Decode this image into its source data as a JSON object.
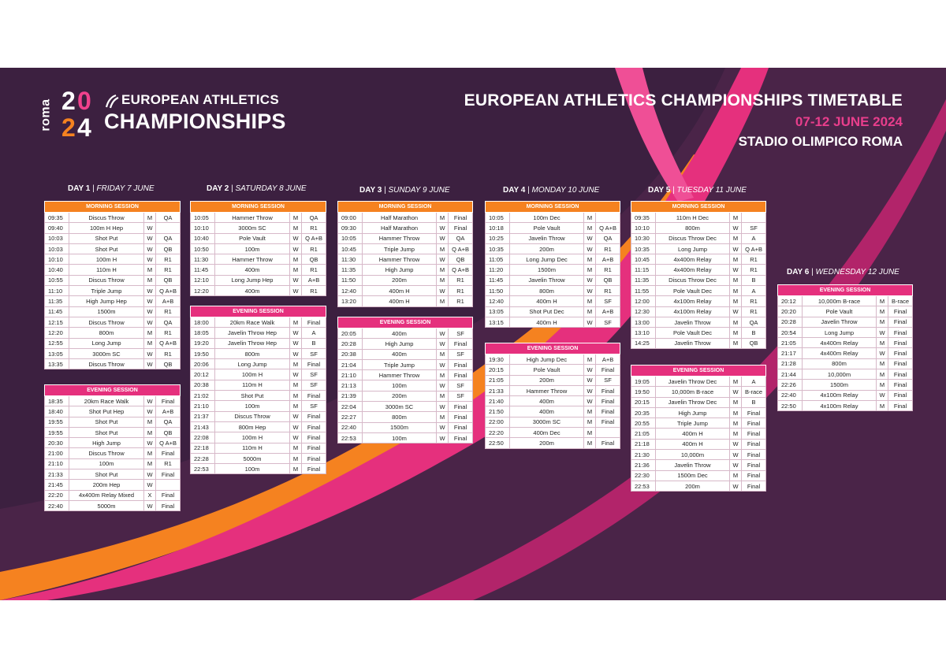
{
  "header": {
    "logo_roma": "roma",
    "logo_year": [
      "2",
      "0",
      "2",
      "4"
    ],
    "logo_line1": "EUROPEAN ATHLETICS",
    "logo_line2": "CHAMPIONSHIPS",
    "title": "EUROPEAN ATHLETICS CHAMPIONSHIPS TIMETABLE",
    "dates": "07-12 JUNE 2024",
    "venue": "STADIO OLIMPICO ROMA"
  },
  "colors": {
    "background": "#3c2040",
    "morning": "#f58220",
    "evening": "#e5307d",
    "pink": "#e83e8c"
  },
  "days": [
    {
      "day": "DAY 1",
      "sep": " | ",
      "date": "FRIDAY 7 JUNE",
      "sessions": [
        {
          "name": "MORNING SESSION",
          "type": "morning",
          "rows": [
            [
              "09:35",
              "Discus Throw",
              "M",
              "QA"
            ],
            [
              "09:40",
              "100m H Hep",
              "W",
              ""
            ],
            [
              "10:03",
              "Shot Put",
              "W",
              "QA"
            ],
            [
              "10:03",
              "Shot Put",
              "W",
              "QB"
            ],
            [
              "10:10",
              "100m H",
              "W",
              "R1"
            ],
            [
              "10:40",
              "110m H",
              "M",
              "R1"
            ],
            [
              "10:55",
              "Discus Throw",
              "M",
              "QB"
            ],
            [
              "11:10",
              "Triple Jump",
              "W",
              "Q A+B"
            ],
            [
              "11:35",
              "High Jump Hep",
              "W",
              "A+B"
            ],
            [
              "11:45",
              "1500m",
              "W",
              "R1"
            ],
            [
              "12:15",
              "Discus Throw",
              "W",
              "QA"
            ],
            [
              "12:20",
              "800m",
              "M",
              "R1"
            ],
            [
              "12:55",
              "Long Jump",
              "M",
              "Q A+B"
            ],
            [
              "13:05",
              "3000m SC",
              "W",
              "R1"
            ],
            [
              "13:35",
              "Discus Throw",
              "W",
              "QB"
            ]
          ]
        },
        {
          "name": "EVENING SESSION",
          "type": "evening",
          "rows": [
            [
              "18:35",
              "20km Race Walk",
              "W",
              "Final"
            ],
            [
              "18:40",
              "Shot Put Hep",
              "W",
              "A+B"
            ],
            [
              "19:55",
              "Shot Put",
              "M",
              "QA"
            ],
            [
              "19:55",
              "Shot Put",
              "M",
              "QB"
            ],
            [
              "20:30",
              "High Jump",
              "W",
              "Q A+B"
            ],
            [
              "21:00",
              "Discus Throw",
              "M",
              "Final"
            ],
            [
              "21:10",
              "100m",
              "M",
              "R1"
            ],
            [
              "21:33",
              "Shot Put",
              "W",
              "Final"
            ],
            [
              "21:45",
              "200m Hep",
              "W",
              ""
            ],
            [
              "22:20",
              "4x400m Relay Mixed",
              "X",
              "Final"
            ],
            [
              "22:40",
              "5000m",
              "W",
              "Final"
            ]
          ]
        }
      ]
    },
    {
      "day": "DAY 2",
      "sep": " | ",
      "date": "SATURDAY 8 JUNE",
      "sessions": [
        {
          "name": "MORNING SESSION",
          "type": "morning",
          "rows": [
            [
              "10:05",
              "Hammer Throw",
              "M",
              "QA"
            ],
            [
              "10:10",
              "3000m SC",
              "M",
              "R1"
            ],
            [
              "10:40",
              "Pole Vault",
              "W",
              "Q A+B"
            ],
            [
              "10:50",
              "100m",
              "W",
              "R1"
            ],
            [
              "11:30",
              "Hammer Throw",
              "M",
              "QB"
            ],
            [
              "11:45",
              "400m",
              "M",
              "R1"
            ],
            [
              "12:10",
              "Long Jump Hep",
              "W",
              "A+B"
            ],
            [
              "12:20",
              "400m",
              "W",
              "R1"
            ]
          ]
        },
        {
          "name": "EVENING SESSION",
          "type": "evening",
          "rows": [
            [
              "18:00",
              "20km Race Walk",
              "M",
              "Final"
            ],
            [
              "18:05",
              "Javelin Throw Hep",
              "W",
              "A"
            ],
            [
              "19:20",
              "Javelin Throw Hep",
              "W",
              "B"
            ],
            [
              "19:50",
              "800m",
              "W",
              "SF"
            ],
            [
              "20:06",
              "Long Jump",
              "M",
              "Final"
            ],
            [
              "20:12",
              "100m H",
              "W",
              "SF"
            ],
            [
              "20:38",
              "110m H",
              "M",
              "SF"
            ],
            [
              "21:02",
              "Shot Put",
              "M",
              "Final"
            ],
            [
              "21:10",
              "100m",
              "M",
              "SF"
            ],
            [
              "21:37",
              "Discus Throw",
              "W",
              "Final"
            ],
            [
              "21:43",
              "800m Hep",
              "W",
              "Final"
            ],
            [
              "22:08",
              "100m H",
              "W",
              "Final"
            ],
            [
              "22:18",
              "110m H",
              "M",
              "Final"
            ],
            [
              "22:28",
              "5000m",
              "M",
              "Final"
            ],
            [
              "22:53",
              "100m",
              "M",
              "Final"
            ]
          ]
        }
      ]
    },
    {
      "day": "DAY 3",
      "sep": " | ",
      "date": "SUNDAY 9 JUNE",
      "sessions": [
        {
          "name": "MORNING SESSION",
          "type": "morning",
          "rows": [
            [
              "09:00",
              "Half Marathon",
              "M",
              "Final"
            ],
            [
              "09:30",
              "Half Marathon",
              "W",
              "Final"
            ],
            [
              "10:05",
              "Hammer Throw",
              "W",
              "QA"
            ],
            [
              "10:45",
              "Triple Jump",
              "M",
              "Q A+B"
            ],
            [
              "11:30",
              "Hammer Throw",
              "W",
              "QB"
            ],
            [
              "11:35",
              "High Jump",
              "M",
              "Q A+B"
            ],
            [
              "11:50",
              "200m",
              "M",
              "R1"
            ],
            [
              "12:40",
              "400m H",
              "W",
              "R1"
            ],
            [
              "13:20",
              "400m H",
              "M",
              "R1"
            ]
          ]
        },
        {
          "name": "EVENING SESSION",
          "type": "evening",
          "rows": [
            [
              "20:05",
              "400m",
              "W",
              "SF"
            ],
            [
              "20:28",
              "High Jump",
              "W",
              "Final"
            ],
            [
              "20:38",
              "400m",
              "M",
              "SF"
            ],
            [
              "21:04",
              "Triple Jump",
              "W",
              "Final"
            ],
            [
              "21:10",
              "Hammer Throw",
              "M",
              "Final"
            ],
            [
              "21:13",
              "100m",
              "W",
              "SF"
            ],
            [
              "21:39",
              "200m",
              "M",
              "SF"
            ],
            [
              "22:04",
              "3000m SC",
              "W",
              "Final"
            ],
            [
              "22:27",
              "800m",
              "M",
              "Final"
            ],
            [
              "22:40",
              "1500m",
              "W",
              "Final"
            ],
            [
              "22:53",
              "100m",
              "W",
              "Final"
            ]
          ]
        }
      ]
    },
    {
      "day": "DAY 4",
      "sep": " | ",
      "date": "MONDAY 10 JUNE",
      "sessions": [
        {
          "name": "MORNING SESSION",
          "type": "morning",
          "rows": [
            [
              "10:05",
              "100m Dec",
              "M",
              ""
            ],
            [
              "10:18",
              "Pole Vault",
              "M",
              "Q A+B"
            ],
            [
              "10:25",
              "Javelin Throw",
              "W",
              "QA"
            ],
            [
              "10:35",
              "200m",
              "W",
              "R1"
            ],
            [
              "11:05",
              "Long Jump Dec",
              "M",
              "A+B"
            ],
            [
              "11:20",
              "1500m",
              "M",
              "R1"
            ],
            [
              "11:45",
              "Javelin Throw",
              "W",
              "QB"
            ],
            [
              "11:50",
              "800m",
              "W",
              "R1"
            ],
            [
              "12:40",
              "400m H",
              "M",
              "SF"
            ],
            [
              "13:05",
              "Shot Put Dec",
              "M",
              "A+B"
            ],
            [
              "13:15",
              "400m H",
              "W",
              "SF"
            ]
          ]
        },
        {
          "name": "EVENING SESSION",
          "type": "evening",
          "rows": [
            [
              "19:30",
              "High Jump Dec",
              "M",
              "A+B"
            ],
            [
              "20:15",
              "Pole Vault",
              "W",
              "Final"
            ],
            [
              "21:05",
              "200m",
              "W",
              "SF"
            ],
            [
              "21:33",
              "Hammer Throw",
              "W",
              "Final"
            ],
            [
              "21:40",
              "400m",
              "W",
              "Final"
            ],
            [
              "21:50",
              "400m",
              "M",
              "Final"
            ],
            [
              "22:00",
              "3000m SC",
              "M",
              "Final"
            ],
            [
              "22:20",
              "400m Dec",
              "M",
              ""
            ],
            [
              "22:50",
              "200m",
              "M",
              "Final"
            ]
          ]
        }
      ]
    },
    {
      "day": "DAY 5",
      "sep": " | ",
      "date": "TUESDAY 11 JUNE",
      "sessions": [
        {
          "name": "MORNING SESSION",
          "type": "morning",
          "rows": [
            [
              "09:35",
              "110m H Dec",
              "M",
              ""
            ],
            [
              "10:10",
              "800m",
              "W",
              "SF"
            ],
            [
              "10:30",
              "Discus Throw Dec",
              "M",
              "A"
            ],
            [
              "10:35",
              "Long Jump",
              "W",
              "Q A+B"
            ],
            [
              "10:45",
              "4x400m Relay",
              "M",
              "R1"
            ],
            [
              "11:15",
              "4x400m Relay",
              "W",
              "R1"
            ],
            [
              "11:35",
              "Discus Throw Dec",
              "M",
              "B"
            ],
            [
              "11:55",
              "Pole Vault Dec",
              "M",
              "A"
            ],
            [
              "12:00",
              "4x100m Relay",
              "M",
              "R1"
            ],
            [
              "12:30",
              "4x100m Relay",
              "W",
              "R1"
            ],
            [
              "13:00",
              "Javelin Throw",
              "M",
              "QA"
            ],
            [
              "13:10",
              "Pole Vault Dec",
              "M",
              "B"
            ],
            [
              "14:25",
              "Javelin Throw",
              "M",
              "QB"
            ]
          ]
        },
        {
          "name": "EVENING SESSION",
          "type": "evening",
          "rows": [
            [
              "19:05",
              "Javelin Throw Dec",
              "M",
              "A"
            ],
            [
              "19:50",
              "10,000m B-race",
              "W",
              "B-race"
            ],
            [
              "20:15",
              "Javelin Throw Dec",
              "M",
              "B"
            ],
            [
              "20:35",
              "High Jump",
              "M",
              "Final"
            ],
            [
              "20:55",
              "Triple Jump",
              "M",
              "Final"
            ],
            [
              "21:05",
              "400m H",
              "M",
              "Final"
            ],
            [
              "21:18",
              "400m H",
              "W",
              "Final"
            ],
            [
              "21:30",
              "10,000m",
              "W",
              "Final"
            ],
            [
              "21:36",
              "Javelin Throw",
              "W",
              "Final"
            ],
            [
              "22:30",
              "1500m Dec",
              "M",
              "Final"
            ],
            [
              "22:53",
              "200m",
              "W",
              "Final"
            ]
          ]
        }
      ]
    },
    {
      "day": "DAY 6",
      "sep": " | ",
      "date": "WEDNESDAY 12 JUNE",
      "sessions": [
        {
          "name": "EVENING SESSION",
          "type": "evening",
          "rows": [
            [
              "20:12",
              "10,000m B-race",
              "M",
              "B-race"
            ],
            [
              "20:20",
              "Pole Vault",
              "M",
              "Final"
            ],
            [
              "20:28",
              "Javelin Throw",
              "M",
              "Final"
            ],
            [
              "20:54",
              "Long Jump",
              "W",
              "Final"
            ],
            [
              "21:05",
              "4x400m Relay",
              "M",
              "Final"
            ],
            [
              "21:17",
              "4x400m Relay",
              "W",
              "Final"
            ],
            [
              "21:28",
              "800m",
              "M",
              "Final"
            ],
            [
              "21:44",
              "10,000m",
              "M",
              "Final"
            ],
            [
              "22:26",
              "1500m",
              "M",
              "Final"
            ],
            [
              "22:40",
              "4x100m Relay",
              "W",
              "Final"
            ],
            [
              "22:50",
              "4x100m Relay",
              "M",
              "Final"
            ]
          ]
        }
      ]
    }
  ]
}
